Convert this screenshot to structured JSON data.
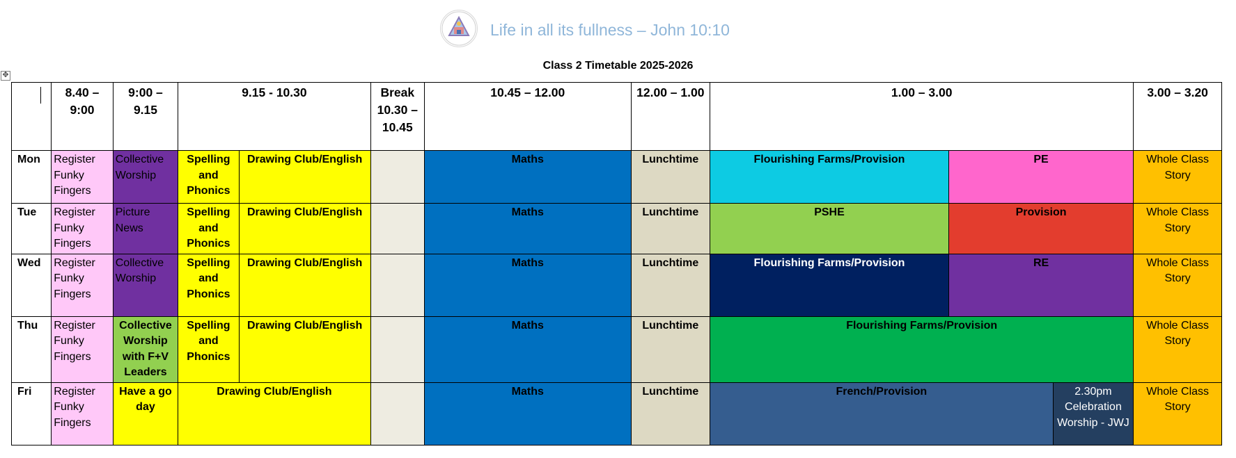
{
  "header": {
    "motto": "Life in all its fullness – John 10:10",
    "title": "Class 2 Timetable 2025-2026"
  },
  "time_headers": [
    "8.40 – 9:00",
    "9:00 – 9.15",
    "9.15 - 10.30",
    "Break 10.30 – 10.45",
    "10.45 – 12.00",
    "12.00 – 1.00",
    "1.00 – 3.00",
    "3.00 – 3.20"
  ],
  "days": [
    {
      "day": "Mon",
      "register": "Register Funky Fingers",
      "slot2": "Collective Worship",
      "spelling": "Spelling and Phonics",
      "morning": "Drawing Club/English",
      "maths": "Maths",
      "lunch": "Lunchtime",
      "pm1": "Flourishing Farms/Provision",
      "pm2": "PE",
      "story": "Whole Class Story"
    },
    {
      "day": "Tue",
      "register": "Register Funky Fingers",
      "slot2": "Picture News",
      "spelling": "Spelling and Phonics",
      "morning": "Drawing Club/English",
      "maths": "Maths",
      "lunch": "Lunchtime",
      "pm1": "PSHE",
      "pm2": "Provision",
      "story": "Whole Class Story"
    },
    {
      "day": "Wed",
      "register": "Register Funky Fingers",
      "slot2": "Collective Worship",
      "spelling": "Spelling and Phonics",
      "morning": "Drawing Club/English",
      "maths": "Maths",
      "lunch": "Lunchtime",
      "pm1": "Flourishing Farms/Provision",
      "pm2": "RE",
      "story": "Whole Class Story"
    },
    {
      "day": "Thu",
      "register": "Register Funky Fingers",
      "slot2": "Collective Worship with F+V Leaders",
      "spelling": "Spelling and Phonics",
      "morning": "Drawing Club/English",
      "maths": "Maths",
      "lunch": "Lunchtime",
      "pm1": "Flourishing Farms/Provision",
      "story": "Whole Class Story"
    },
    {
      "day": "Fri",
      "register": "Register Funky Fingers",
      "slot2": "Have a go day",
      "morning": "Drawing Club/English",
      "maths": "Maths",
      "lunch": "Lunchtime",
      "pm1": "French/Provision",
      "pm2": "2.30pm Celebration Worship - JWJ",
      "story": "Whole Class Story"
    }
  ],
  "colors": {
    "register": "#ffc8f8",
    "worship_purple": "#7030a0",
    "thu_worship": "#92d050",
    "yellow": "#ffff00",
    "break": "#eeece1",
    "maths": "#0070c0",
    "lunch": "#ddd9c3",
    "farms_mon": "#0dcbe3",
    "pe": "#ff66cc",
    "pshe": "#92d050",
    "provision": "#e33d2e",
    "farms_wed": "#002060",
    "re": "#7030a0",
    "farms_thu": "#00b050",
    "french": "#355d8f",
    "celebration": "#243f60",
    "story": "#ffc000"
  },
  "icons": [
    "school-logo-icon",
    "table-move-handle-icon"
  ]
}
